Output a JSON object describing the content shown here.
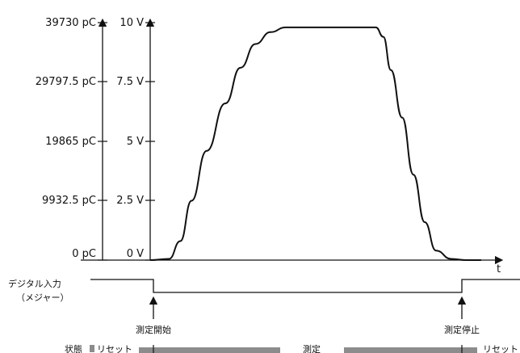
{
  "axis_left": {
    "charge_labels": [
      "39730 pC",
      "29797.5 pC",
      "19865 pC",
      "9932.5 pC",
      "0 pC"
    ],
    "voltage_labels": [
      "10 V",
      "7.5 V",
      "5 V",
      "2.5 V",
      "0 V"
    ]
  },
  "axis_x": {
    "label": "t"
  },
  "chart_data": {
    "type": "line",
    "title": "",
    "xlabel": "t",
    "ylabel": "",
    "ylim_voltage": [
      0,
      10
    ],
    "ylim_charge": [
      0,
      39730
    ],
    "series": [
      {
        "x": [
          0.0,
          0.05,
          0.08,
          0.11,
          0.15,
          0.2,
          0.24,
          0.28,
          0.32,
          0.36,
          0.4,
          0.46,
          0.5,
          0.55,
          0.6,
          0.62,
          0.64,
          0.67,
          0.7,
          0.73,
          0.76,
          0.8,
          0.84,
          0.88
        ],
        "y": [
          0.0,
          0.05,
          0.8,
          2.5,
          4.6,
          6.6,
          8.1,
          9.1,
          9.6,
          9.8,
          9.8,
          9.8,
          9.8,
          9.8,
          9.8,
          9.4,
          8.0,
          6.0,
          3.6,
          1.6,
          0.4,
          0.05,
          0.0,
          0.0
        ]
      }
    ]
  },
  "signal": {
    "label_line1": "デジタル入力",
    "label_line2": "（メジャー）",
    "start_label": "測定開始",
    "stop_label": "測定停止"
  },
  "status": {
    "label": "状態",
    "reset_label": "リセット",
    "measure_label": "測定",
    "reset_end_label": "リセット",
    "bar_color": "#8c8c8c"
  }
}
